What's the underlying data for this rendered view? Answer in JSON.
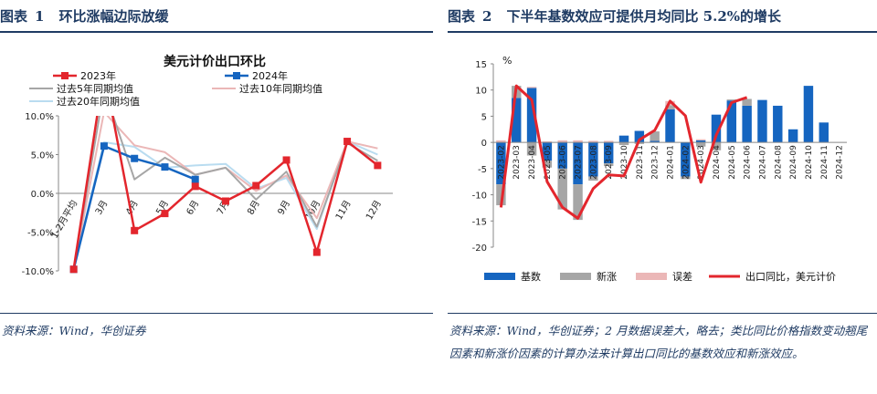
{
  "figure1": {
    "label": "图表",
    "number": "1",
    "title": "环比涨幅边际放缓",
    "source": "资料来源：Wind，华创证券"
  },
  "figure2": {
    "label": "图表",
    "number": "2",
    "title": "下半年基数效应可提供月均同比 5.2%的增长",
    "source": "资料来源：Wind，华创证券；2 月数据误差大，略去；类比同比价格指数变动翘尾因素和新涨价因素的计算办法来计算出口同比的基数效应和新涨效应。"
  },
  "colors": {
    "title_blue": "#1f3b63",
    "red": "#e3262d",
    "blue": "#1565c0",
    "gray": "#a6a6a6",
    "pink": "#ebb7b7",
    "light_blue": "#b9dcf0"
  },
  "chart_data": [
    {
      "type": "line",
      "title": "美元计价出口环比",
      "categories": [
        "1-2月平均",
        "3月",
        "4月",
        "5月",
        "6月",
        "7月",
        "8月",
        "9月",
        "10月",
        "11月",
        "12月"
      ],
      "yticks": [
        "10.0%",
        "5.0%",
        "0.0%",
        "-5.0%",
        "-10.0%"
      ],
      "ylim": [
        -10,
        10
      ],
      "series": [
        {
          "name": "2023年",
          "color": "#e3262d",
          "marker": "square",
          "values": [
            -9.8,
            15.8,
            -4.8,
            -2.6,
            0.9,
            -1.0,
            1.0,
            4.3,
            -7.6,
            6.7,
            3.6
          ]
        },
        {
          "name": "2024年",
          "color": "#1565c0",
          "marker": "square",
          "values": [
            -9.8,
            6.1,
            4.5,
            3.4,
            1.8,
            null,
            null,
            null,
            null,
            null,
            null
          ]
        },
        {
          "name": "过去5年同期均值",
          "color": "#a6a6a6",
          "marker": "none",
          "values": [
            -9.8,
            13.5,
            1.8,
            4.6,
            2.4,
            3.3,
            -0.8,
            2.8,
            -4.3,
            6.5,
            4.2
          ]
        },
        {
          "name": "过去10年同期均值",
          "color": "#ebb7b7",
          "marker": "none",
          "values": [
            -9.8,
            10.5,
            6.2,
            5.3,
            2.4,
            3.3,
            0.3,
            2.3,
            -3.2,
            6.7,
            5.8
          ]
        },
        {
          "name": "过去20年同期均值",
          "color": "#b9dcf0",
          "marker": "none",
          "values": [
            -9.8,
            6.6,
            6.0,
            3.3,
            3.6,
            3.8,
            0.6,
            2.0,
            -4.6,
            6.7,
            5.0
          ]
        }
      ]
    },
    {
      "type": "bar",
      "ylabel": "%",
      "ylim": [
        -20,
        15
      ],
      "yticks": [
        "15",
        "10",
        "5",
        "0",
        "-5",
        "-10",
        "-15",
        "-20"
      ],
      "categories": [
        "2023-02",
        "2023-03",
        "2023-04",
        "2023-05",
        "2023-06",
        "2023-07",
        "2023-08",
        "2023-09",
        "2023-10",
        "2023-11",
        "2023-12",
        "2024-01",
        "2024-02",
        "2024-03",
        "2024-04",
        "2024-05",
        "2024-06",
        "2024-07",
        "2024-08",
        "2024-09",
        "2024-10",
        "2024-11",
        "2024-12"
      ],
      "series": [
        {
          "name": "基数",
          "color": "#1565c0",
          "values": [
            -8.0,
            8.5,
            10.4,
            -3.5,
            -5.0,
            -8.0,
            -6.5,
            -4.0,
            1.3,
            2.2,
            0.3,
            6.3,
            -6.5,
            0.4,
            5.3,
            8.0,
            7.0,
            8.1,
            7.0,
            2.5,
            10.8,
            3.8,
            null
          ]
        },
        {
          "name": "新涨",
          "color": "#a6a6a6",
          "values": [
            -4.0,
            2.3,
            -2.5,
            -1.3,
            -7.8,
            -6.8,
            -0.8,
            -0.5,
            -0.5,
            -0.3,
            1.8,
            0.8,
            -0.5,
            -0.8,
            -1.5,
            0.2,
            1.3,
            null,
            null,
            null,
            null,
            null,
            null
          ]
        },
        {
          "name": "误差",
          "color": "#ebb7b7",
          "values": [
            0.4,
            0.0,
            0.2,
            0.2,
            0.4,
            0.4,
            0.3,
            0.3,
            0.0,
            0.0,
            0.0,
            0.8,
            0.0,
            0.2,
            0.0,
            0.0,
            0.0,
            null,
            null,
            null,
            null,
            null,
            null
          ]
        },
        {
          "name": "出口同比，美元计价",
          "color": "#e3262d",
          "type": "line",
          "values": [
            -12.4,
            10.8,
            8.1,
            -7.5,
            -12.4,
            -14.5,
            -8.8,
            -6.2,
            -6.4,
            0.5,
            2.3,
            7.9,
            5.1,
            -7.6,
            1.4,
            7.6,
            8.6,
            null,
            null,
            null,
            null,
            null,
            null
          ]
        }
      ],
      "legend": "bottom"
    }
  ]
}
